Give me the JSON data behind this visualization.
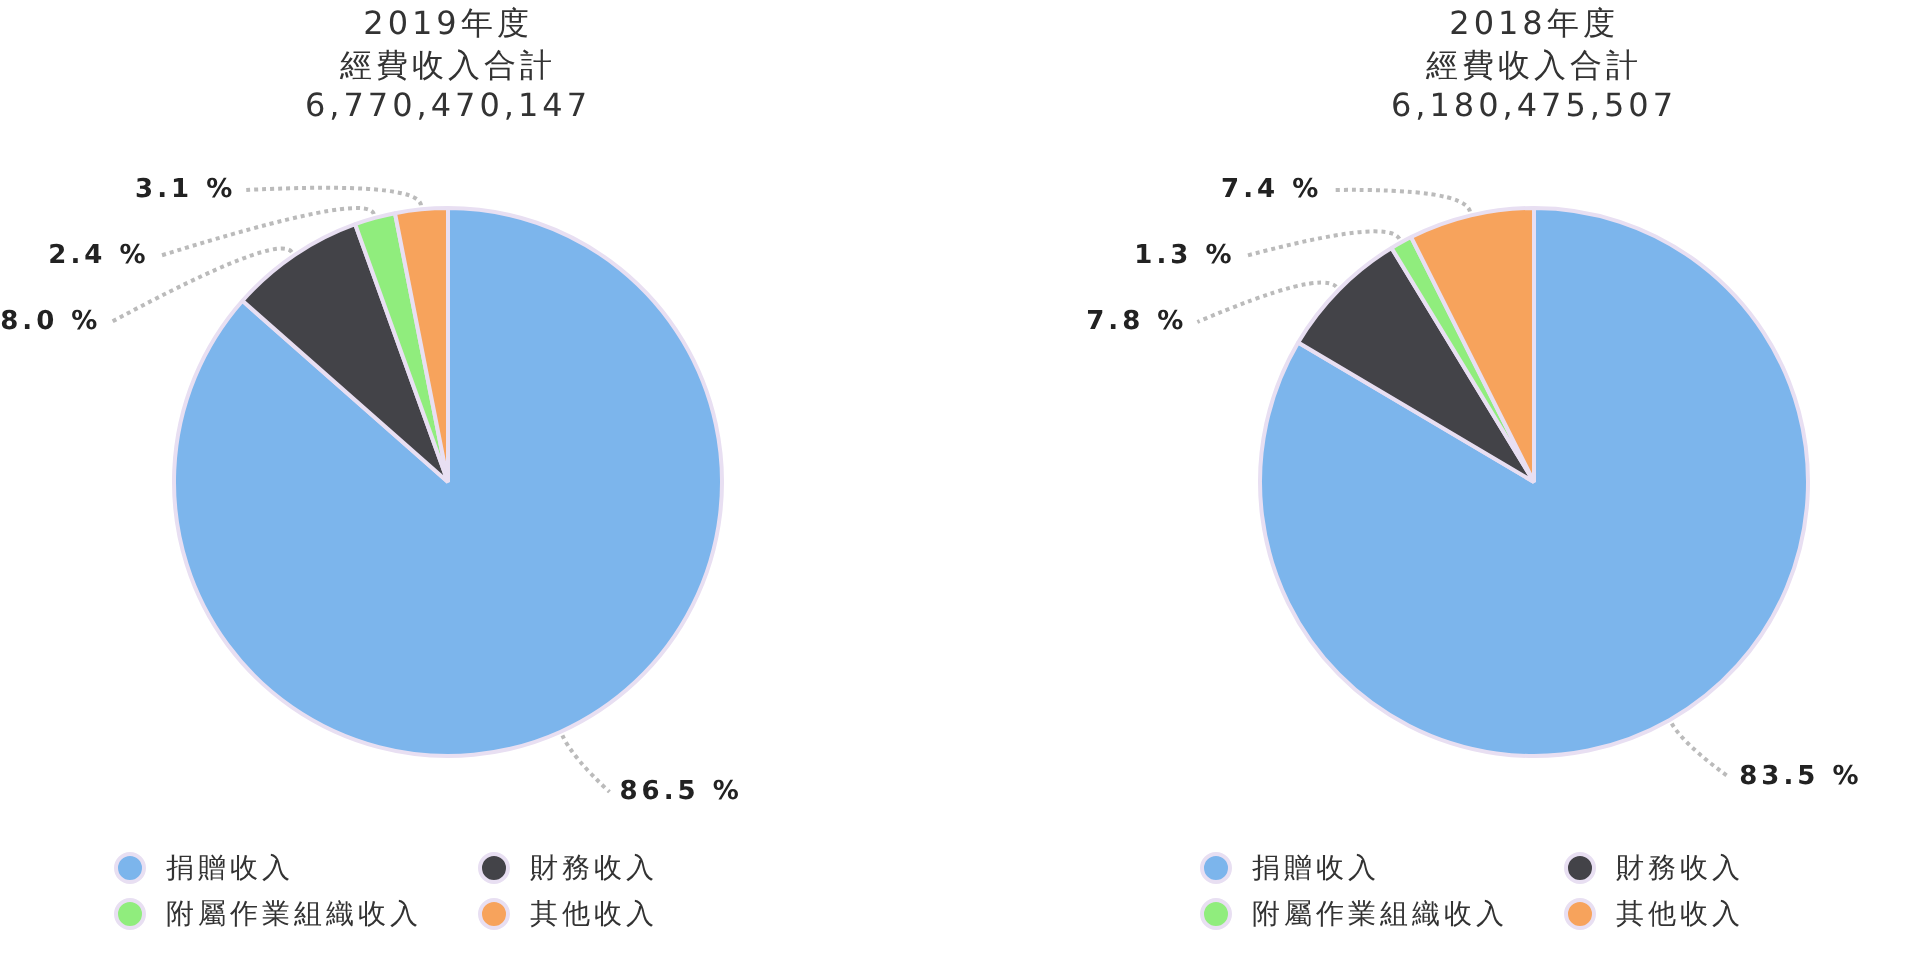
{
  "chart_data": [
    {
      "type": "pie",
      "title": "2019年度",
      "subtitle": "經費收入合計",
      "annotations": [
        "6,770,470,147"
      ],
      "categories": [
        "捐贈收入",
        "財務收入",
        "附屬作業組織收入",
        "其他收入"
      ],
      "values": [
        86.5,
        8.0,
        2.4,
        3.1
      ],
      "colors": [
        "#7cb5ec",
        "#434348",
        "#90ed7d",
        "#f7a35c"
      ],
      "value_labels": [
        "86.5 %",
        "8.0 %",
        "2.4 %",
        "3.1 %"
      ],
      "legend": "bottom"
    },
    {
      "type": "pie",
      "title": "2018年度",
      "subtitle": "經費收入合計",
      "annotations": [
        "6,180,475,507"
      ],
      "categories": [
        "捐贈收入",
        "財務收入",
        "附屬作業組織收入",
        "其他收入"
      ],
      "values": [
        83.5,
        7.8,
        1.3,
        7.4
      ],
      "colors": [
        "#7cb5ec",
        "#434348",
        "#90ed7d",
        "#f7a35c"
      ],
      "value_labels": [
        "83.5 %",
        "7.8 %",
        "1.3 %",
        "7.4 %"
      ],
      "legend": "bottom"
    }
  ]
}
